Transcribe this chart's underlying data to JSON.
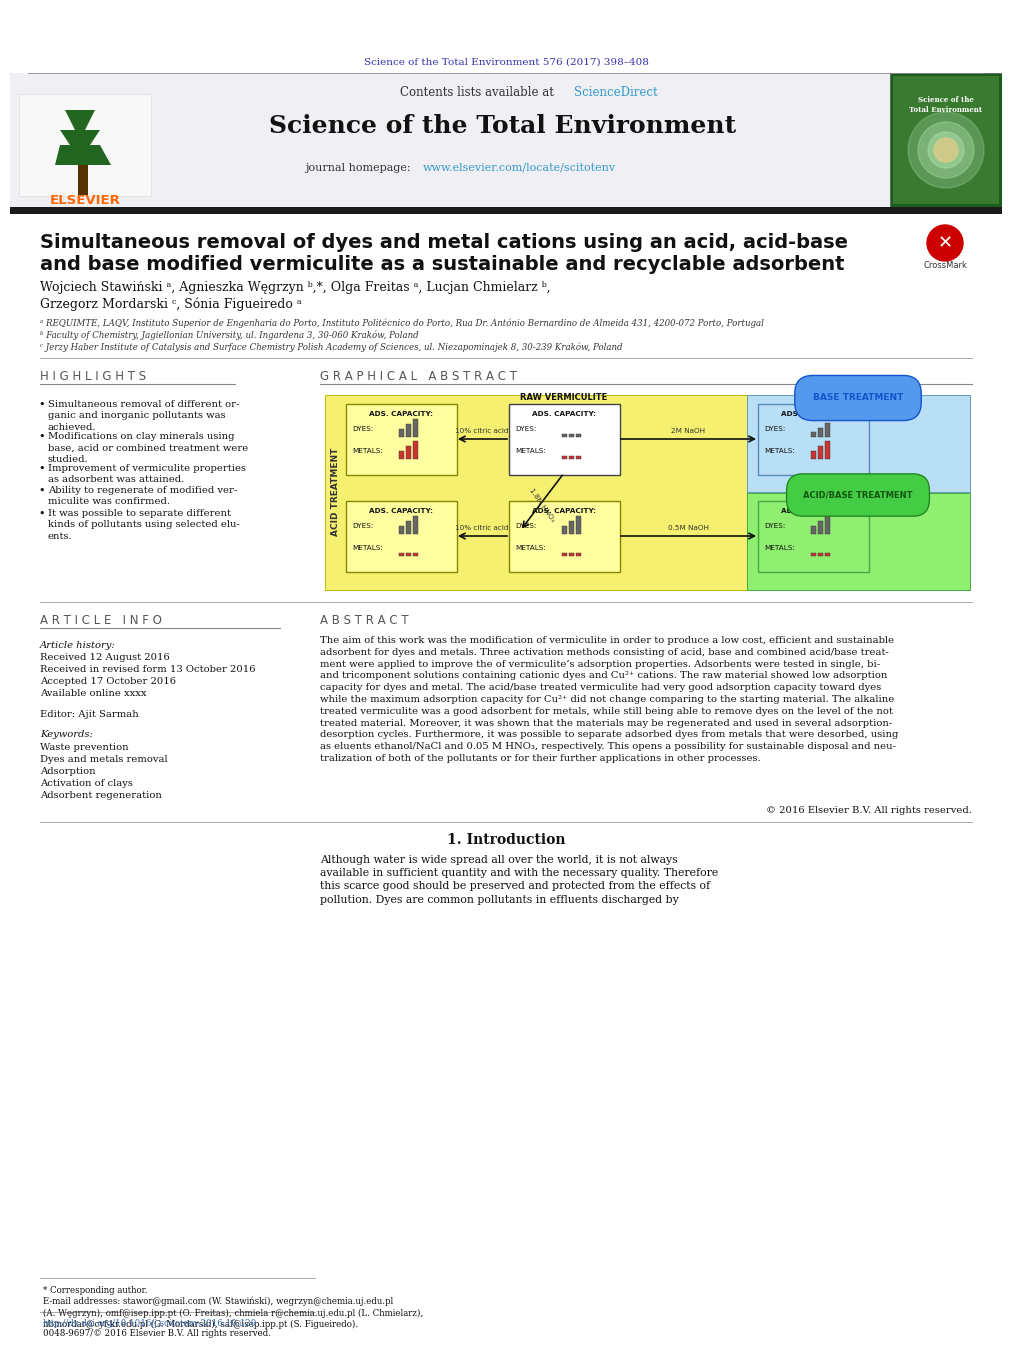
{
  "top_journal_line": "Science of the Total Environment 576 (2017) 398–408",
  "journal_name": "Science of the Total Environment",
  "title_line1": "Simultaneous removal of dyes and metal cations using an acid, acid-base",
  "title_line2": "and base modified vermiculite as a sustainable and recyclable adsorbent",
  "authors1": "Wojciech Stawiński ᵃ, Agnieszka Węgrzyn ᵇ,*, Olga Freitas ᵃ, Lucjan Chmielarz ᵇ,",
  "authors2": "Grzegorz Mordarski ᶜ, Sónia Figueiredo ᵃ",
  "affil_a": "ᵃ REQUIMTE, LAQV, Instituto Superior de Engenharia do Porto, Instituto Politécnico do Porto, Rua Dr. António Bernardino de Almeida 431, 4200-072 Porto, Portugal",
  "affil_b": "ᵇ Faculty of Chemistry, Jagiellonian University, ul. Ingardena 3, 30-060 Kraków, Poland",
  "affil_c": "ᶜ Jerzy Haber Institute of Catalysis and Surface Chemistry Polish Academy of Sciences, ul. Niezapominajek 8, 30-239 Kraków, Poland",
  "highlights_title": "H I G H L I G H T S",
  "highlights": [
    "Simultaneous removal of different or-\nganic and inorganic pollutants was\nachieved.",
    "Modifications on clay minerals using\nbase, acid or combined treatment were\nstudied.",
    "Improvement of vermiculite properties\nas adsorbent was attained.",
    "Ability to regenerate of modified ver-\nmiculite was confirmed.",
    "It was possible to separate different\nkinds of pollutants using selected elu-\nents."
  ],
  "graphical_abstract_title": "G R A P H I C A L   A B S T R A C T",
  "article_info_title": "A R T I C L E   I N F O",
  "abstract_title": "A B S T R A C T",
  "abstract_text": "The aim of this work was the modification of vermiculite in order to produce a low cost, efficient and sustainable\nadsorbent for dyes and metals. Three activation methods consisting of acid, base and combined acid/base treat-\nment were applied to improve the of vermiculite’s adsorption properties. Adsorbents were tested in single, bi-\nand tricomponent solutions containing cationic dyes and Cu²⁺ cations. The raw material showed low adsorption\ncapacity for dyes and metal. The acid/base treated vermiculite had very good adsorption capacity toward dyes\nwhile the maximum adsorption capacity for Cu²⁺ did not change comparing to the starting material. The alkaline\ntreated vermiculite was a good adsorbent for metals, while still being able to remove dyes on the level of the not\ntreated material. Moreover, it was shown that the materials may be regenerated and used in several adsorption-\ndesorption cycles. Furthermore, it was possible to separate adsorbed dyes from metals that were desorbed, using\nas eluents ethanol/NaCl and 0.05 M HNO₃, respectively. This opens a possibility for sustainable disposal and neu-\ntralization of both of the pollutants or for their further applications in other processes.",
  "copyright": "© 2016 Elsevier B.V. All rights reserved.",
  "intro_title": "1. Introduction",
  "intro_text": "Although water is wide spread all over the world, it is not always\navailable in sufficient quantity and with the necessary quality. Therefore\nthis scarce good should be preserved and protected from the effects of\npollution. Dyes are common pollutants in effluents discharged by",
  "doi_text": "http://dx.doi.org/10.1016/j.scitotenv.2016.10.120",
  "issn_text": "0048-9697/© 2016 Elsevier B.V. All rights reserved.",
  "corr_note": "* Corresponding author.",
  "email_note": "E-mail addresses: stawor@gmail.com (W. Stawiński), wegrzyn@chemia.uj.edu.pl\n(A. Węgrzyn), omf@isep.ipp.pt (O. Freitas), chmiela r@chemia.uj.edu.pl (L. Chmielarz),\nnbmordar@cyf-kr.edu.pl (G. Mordarski), saf@isep.ipp.pt (S. Figueiredo).",
  "bg_color": "#ffffff",
  "elsevier_orange": "#FF6600",
  "sciencedirect_blue": "#3399CC",
  "link_blue": "#3366AA"
}
